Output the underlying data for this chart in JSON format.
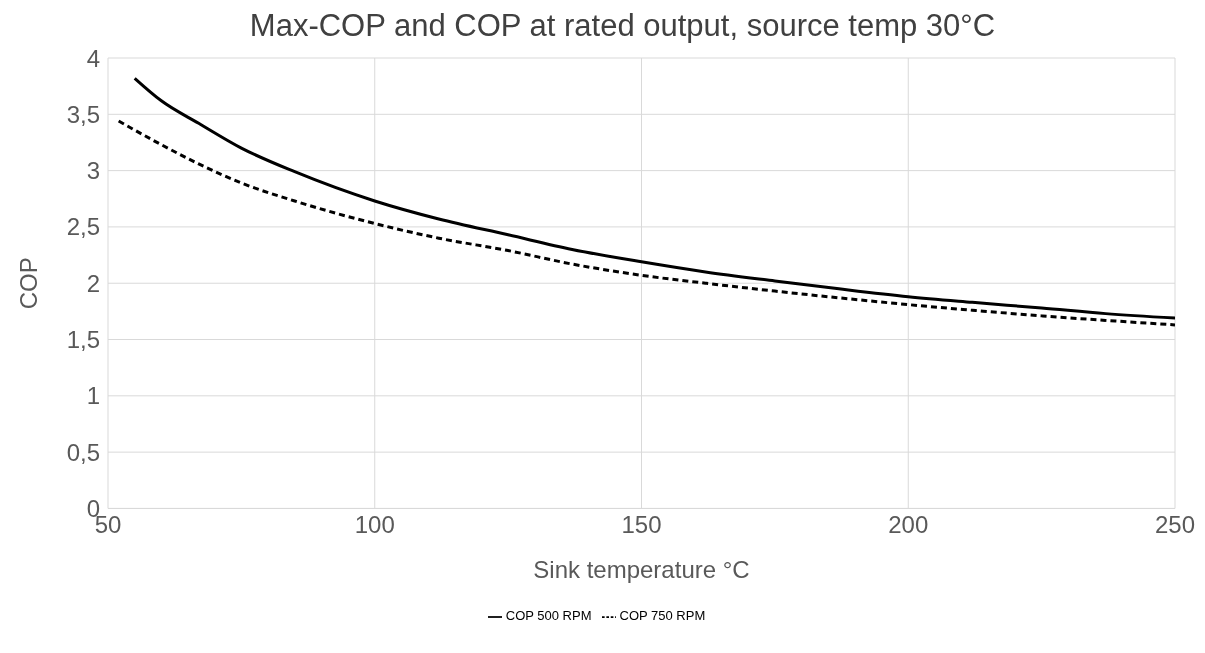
{
  "chart_data": {
    "type": "line",
    "title": "Max-COP and COP at rated output, source temp 30°C",
    "xlabel": "Sink temperature °C",
    "ylabel": "COP",
    "series": [
      {
        "name": "COP 500 RPM",
        "color": "#000000",
        "line_style": "solid",
        "x": [
          55,
          60,
          67,
          75,
          85,
          100,
          112,
          125,
          137,
          150,
          162,
          175,
          187,
          200,
          212,
          225,
          237,
          250
        ],
        "values": [
          3.82,
          3.62,
          3.42,
          3.2,
          2.99,
          2.73,
          2.57,
          2.43,
          2.3,
          2.19,
          2.1,
          2.02,
          1.95,
          1.88,
          1.83,
          1.78,
          1.73,
          1.69
        ]
      },
      {
        "name": "COP 750 RPM",
        "color": "#000000",
        "line_style": "dashed",
        "x": [
          52,
          60,
          67,
          75,
          85,
          100,
          112,
          125,
          137,
          150,
          162,
          175,
          187,
          200,
          212,
          225,
          237,
          250
        ],
        "values": [
          3.44,
          3.23,
          3.06,
          2.89,
          2.73,
          2.53,
          2.4,
          2.29,
          2.17,
          2.07,
          2.0,
          1.93,
          1.87,
          1.81,
          1.76,
          1.71,
          1.67,
          1.63
        ]
      }
    ],
    "xlim": [
      50,
      250
    ],
    "xticks": [
      50,
      100,
      150,
      200,
      250
    ],
    "ylim": [
      0,
      4
    ],
    "yticks": [
      {
        "value": 0,
        "label": "0"
      },
      {
        "value": 0.5,
        "label": "0,5"
      },
      {
        "value": 1,
        "label": "1"
      },
      {
        "value": 1.5,
        "label": "1,5"
      },
      {
        "value": 2,
        "label": "2"
      },
      {
        "value": 2.5,
        "label": "2,5"
      },
      {
        "value": 3,
        "label": "3"
      },
      {
        "value": 3.5,
        "label": "3,5"
      },
      {
        "value": 4,
        "label": "4"
      }
    ],
    "grid": true,
    "legend": "bottom",
    "marker": "none"
  }
}
